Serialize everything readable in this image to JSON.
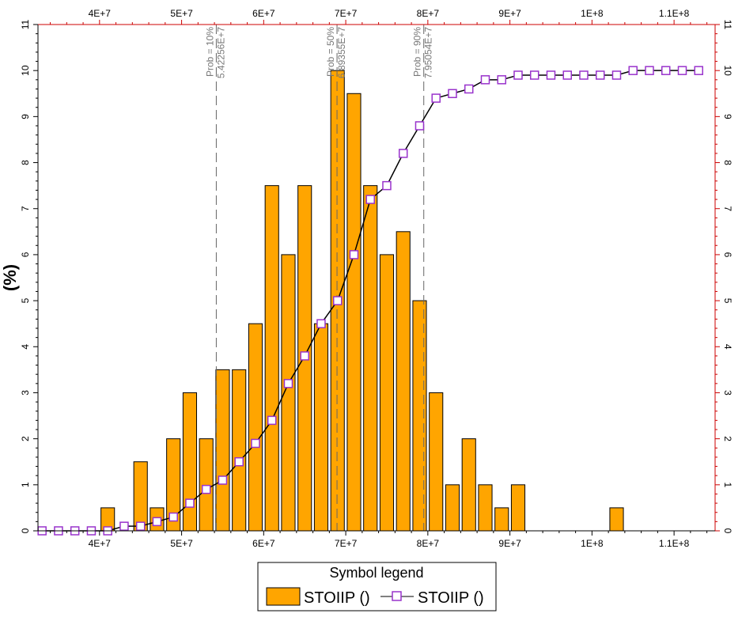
{
  "chart_data": {
    "type": "bar",
    "ylabel": "(%)",
    "xlim": [
      32500000,
      115000000
    ],
    "ylim": [
      0,
      11
    ],
    "x_ticks": [
      {
        "value": 40000000,
        "label": "4E+7"
      },
      {
        "value": 50000000,
        "label": "5E+7"
      },
      {
        "value": 60000000,
        "label": "6E+7"
      },
      {
        "value": 70000000,
        "label": "7E+7"
      },
      {
        "value": 80000000,
        "label": "8E+7"
      },
      {
        "value": 90000000,
        "label": "9E+7"
      },
      {
        "value": 100000000,
        "label": "1E+8"
      },
      {
        "value": 110000000,
        "label": "1.1E+8"
      }
    ],
    "y_ticks": [
      "0",
      "1",
      "2",
      "3",
      "4",
      "5",
      "6",
      "7",
      "8",
      "9",
      "10",
      "11"
    ],
    "bar_width": 1650000,
    "histogram": {
      "name": "STOIIP ()",
      "color": "#FFA500",
      "x": [
        41000000,
        45000000,
        47000000,
        49000000,
        51000000,
        53000000,
        55000000,
        57000000,
        59000000,
        61000000,
        63000000,
        65000000,
        67000000,
        69000000,
        71000000,
        73000000,
        75000000,
        77000000,
        79000000,
        81000000,
        83000000,
        85000000,
        87000000,
        89000000,
        91000000,
        103000000
      ],
      "values": [
        0.5,
        1.5,
        0.5,
        2,
        3,
        2,
        3.5,
        3.5,
        4.5,
        7.5,
        6,
        7.5,
        4.5,
        10,
        9.5,
        7.5,
        6,
        6.5,
        5,
        3,
        1,
        2,
        1,
        0.5,
        1,
        0.5
      ]
    },
    "cumulative": {
      "name": "STOIIP ()",
      "color": "#9933CC",
      "x": [
        33000000,
        35000000,
        37000000,
        39000000,
        41000000,
        43000000,
        45000000,
        47000000,
        49000000,
        51000000,
        53000000,
        55000000,
        57000000,
        59000000,
        61000000,
        63000000,
        65000000,
        67000000,
        69000000,
        71000000,
        73000000,
        75000000,
        77000000,
        79000000,
        81000000,
        83000000,
        85000000,
        87000000,
        89000000,
        91000000,
        93000000,
        95000000,
        97000000,
        99000000,
        101000000,
        103000000,
        105000000,
        107000000,
        109000000,
        111000000,
        113000000
      ],
      "values": [
        0,
        0,
        0,
        0,
        0,
        0.1,
        0.1,
        0.2,
        0.3,
        0.6,
        0.9,
        1.1,
        1.5,
        1.9,
        2.4,
        3.2,
        3.8,
        4.5,
        5,
        6,
        7.2,
        7.5,
        8.2,
        8.8,
        9.4,
        9.5,
        9.6,
        9.8,
        9.8,
        9.9,
        9.9,
        9.9,
        9.9,
        9.9,
        9.9,
        9.9,
        10,
        10,
        10,
        10,
        10
      ]
    },
    "probability_markers": [
      {
        "x": 54225600,
        "label": "Prob = 10%",
        "value": "5.42256E+7"
      },
      {
        "x": 68935500,
        "label": "Prob = 50%",
        "value": "6.89355E+7"
      },
      {
        "x": 79505400,
        "label": "Prob = 90%",
        "value": "7.95054E+7"
      }
    ],
    "legend": {
      "title": "Symbol legend",
      "entries": [
        "STOIIP ()",
        "STOIIP ()"
      ],
      "placement": "bottom"
    },
    "grid": false
  }
}
